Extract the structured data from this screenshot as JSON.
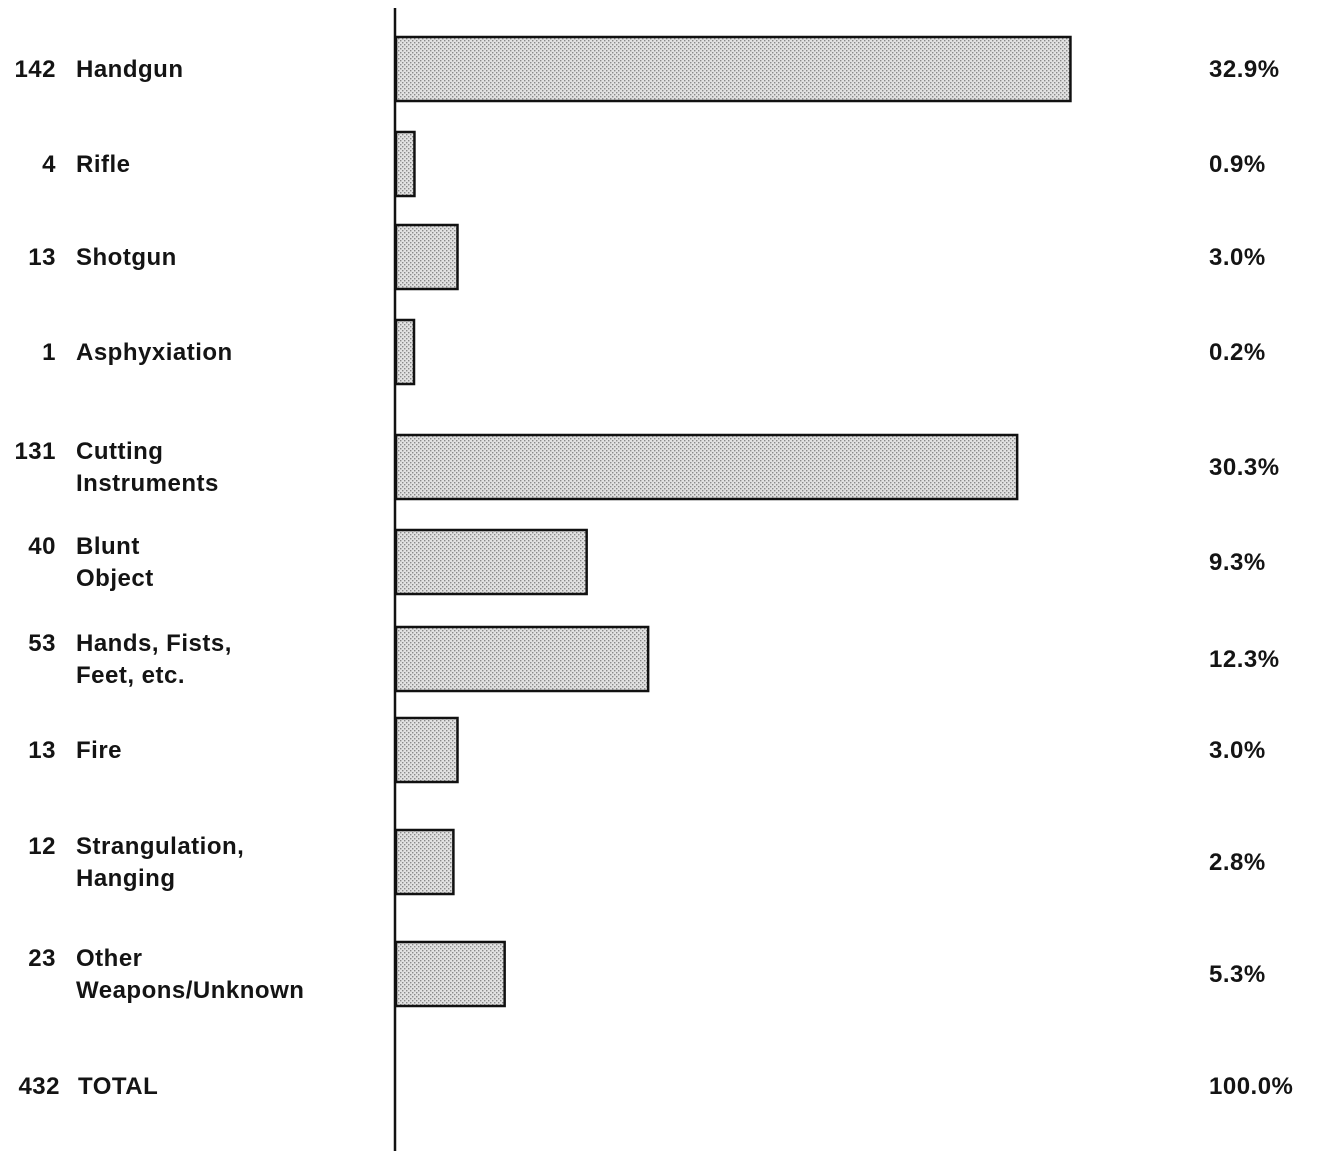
{
  "chart_data": {
    "type": "bar",
    "orientation": "horizontal",
    "title": "",
    "xlabel": "",
    "ylabel": "",
    "grid": false,
    "legend": "none",
    "bar_color": "#d4d4d4",
    "categories": [
      [
        "Handgun"
      ],
      [
        "Rifle"
      ],
      [
        "Shotgun"
      ],
      [
        "Asphyxiation"
      ],
      [
        "Cutting",
        "Instruments"
      ],
      [
        "Blunt",
        "Object"
      ],
      [
        "Hands,  Fists,",
        "Feet,  etc."
      ],
      [
        "Fire"
      ],
      [
        "Strangulation,",
        "Hanging"
      ],
      [
        "Other",
        "Weapons/Unknown"
      ]
    ],
    "counts": [
      "142",
      "4",
      "13",
      "1",
      "131",
      "40",
      "53",
      "13",
      "12",
      "23"
    ],
    "values": [
      32.9,
      0.9,
      3.0,
      0.2,
      30.3,
      9.3,
      12.3,
      3.0,
      2.8,
      5.3
    ],
    "percent_labels": [
      "32.9%",
      "0.9%",
      "3.0%",
      "0.2%",
      "30.3%",
      "9.3%",
      "12.3%",
      "3.0%",
      "2.8%",
      "5.3%"
    ],
    "total": {
      "count": "432",
      "label": "TOTAL",
      "percent": "100.0%"
    }
  }
}
